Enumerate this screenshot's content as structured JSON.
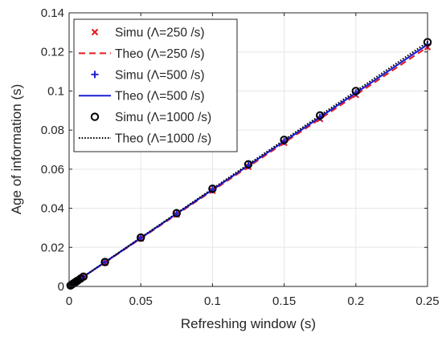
{
  "chart_data": {
    "type": "line",
    "title": "",
    "xlabel": "Refreshing window (s)",
    "ylabel": "Age of information (s)",
    "xlim": [
      0,
      0.25
    ],
    "ylim": [
      0,
      0.14
    ],
    "xticks": [
      0,
      0.05,
      0.1,
      0.15,
      0.2,
      0.25
    ],
    "yticks": [
      0,
      0.02,
      0.04,
      0.06,
      0.08,
      0.1,
      0.12,
      0.14
    ],
    "xtick_labels": [
      "0",
      "0.05",
      "0.1",
      "0.15",
      "0.2",
      "0.25"
    ],
    "ytick_labels": [
      "0",
      "0.02",
      "0.04",
      "0.06",
      "0.08",
      "0.1",
      "0.12",
      "0.14"
    ],
    "grid": true,
    "legend_position": "top-left",
    "x": [
      0.001,
      0.002,
      0.003,
      0.004,
      0.005,
      0.006,
      0.008,
      0.01,
      0.025,
      0.05,
      0.075,
      0.1,
      0.125,
      0.15,
      0.175,
      0.2,
      0.25
    ],
    "series": [
      {
        "name": "Simu (Λ=250 /s)",
        "style": "marker",
        "marker": "x",
        "color": "#e41a1c",
        "values": [
          0.0005,
          0.001,
          0.0015,
          0.002,
          0.0025,
          0.003,
          0.004,
          0.005,
          0.0122,
          0.0245,
          0.0368,
          0.049,
          0.0612,
          0.0735,
          0.0857,
          0.098,
          0.1225
        ]
      },
      {
        "name": "Theo (Λ=250 /s)",
        "style": "dashed",
        "color": "#e41a1c",
        "values": [
          0.0005,
          0.001,
          0.0015,
          0.002,
          0.0025,
          0.003,
          0.004,
          0.005,
          0.0122,
          0.0245,
          0.0368,
          0.049,
          0.0612,
          0.0735,
          0.0857,
          0.098,
          0.1225
        ]
      },
      {
        "name": "Simu (Λ=500 /s)",
        "style": "marker",
        "marker": "plus",
        "color": "#1f1fd6",
        "values": [
          0.0005,
          0.001,
          0.0015,
          0.002,
          0.0025,
          0.003,
          0.004,
          0.005,
          0.0124,
          0.0248,
          0.0372,
          0.0495,
          0.0619,
          0.0742,
          0.0866,
          0.099,
          0.1238
        ]
      },
      {
        "name": "Theo (Λ=500 /s)",
        "style": "solid",
        "color": "#1f1fd6",
        "values": [
          0.0005,
          0.001,
          0.0015,
          0.002,
          0.0025,
          0.003,
          0.004,
          0.005,
          0.0124,
          0.0248,
          0.0372,
          0.0495,
          0.0619,
          0.0742,
          0.0866,
          0.099,
          0.1238
        ]
      },
      {
        "name": "Simu (Λ=1000 /s)",
        "style": "marker",
        "marker": "circle",
        "color": "#000000",
        "values": [
          0.0005,
          0.001,
          0.0015,
          0.002,
          0.0025,
          0.003,
          0.004,
          0.005,
          0.0125,
          0.025,
          0.0375,
          0.05,
          0.0625,
          0.075,
          0.0875,
          0.1,
          0.125
        ]
      },
      {
        "name": "Theo (Λ=1000 /s)",
        "style": "dotted",
        "color": "#000000",
        "values": [
          0.0005,
          0.001,
          0.0015,
          0.002,
          0.0025,
          0.003,
          0.004,
          0.005,
          0.0125,
          0.025,
          0.0375,
          0.05,
          0.0625,
          0.075,
          0.0875,
          0.1,
          0.125
        ]
      }
    ],
    "legend": [
      "Simu (Λ=250 /s)",
      "Theo (Λ=250 /s)",
      "Simu (Λ=500 /s)",
      "Theo (Λ=500 /s)",
      "Simu (Λ=1000 /s)",
      "Theo (Λ=1000 /s)"
    ]
  }
}
